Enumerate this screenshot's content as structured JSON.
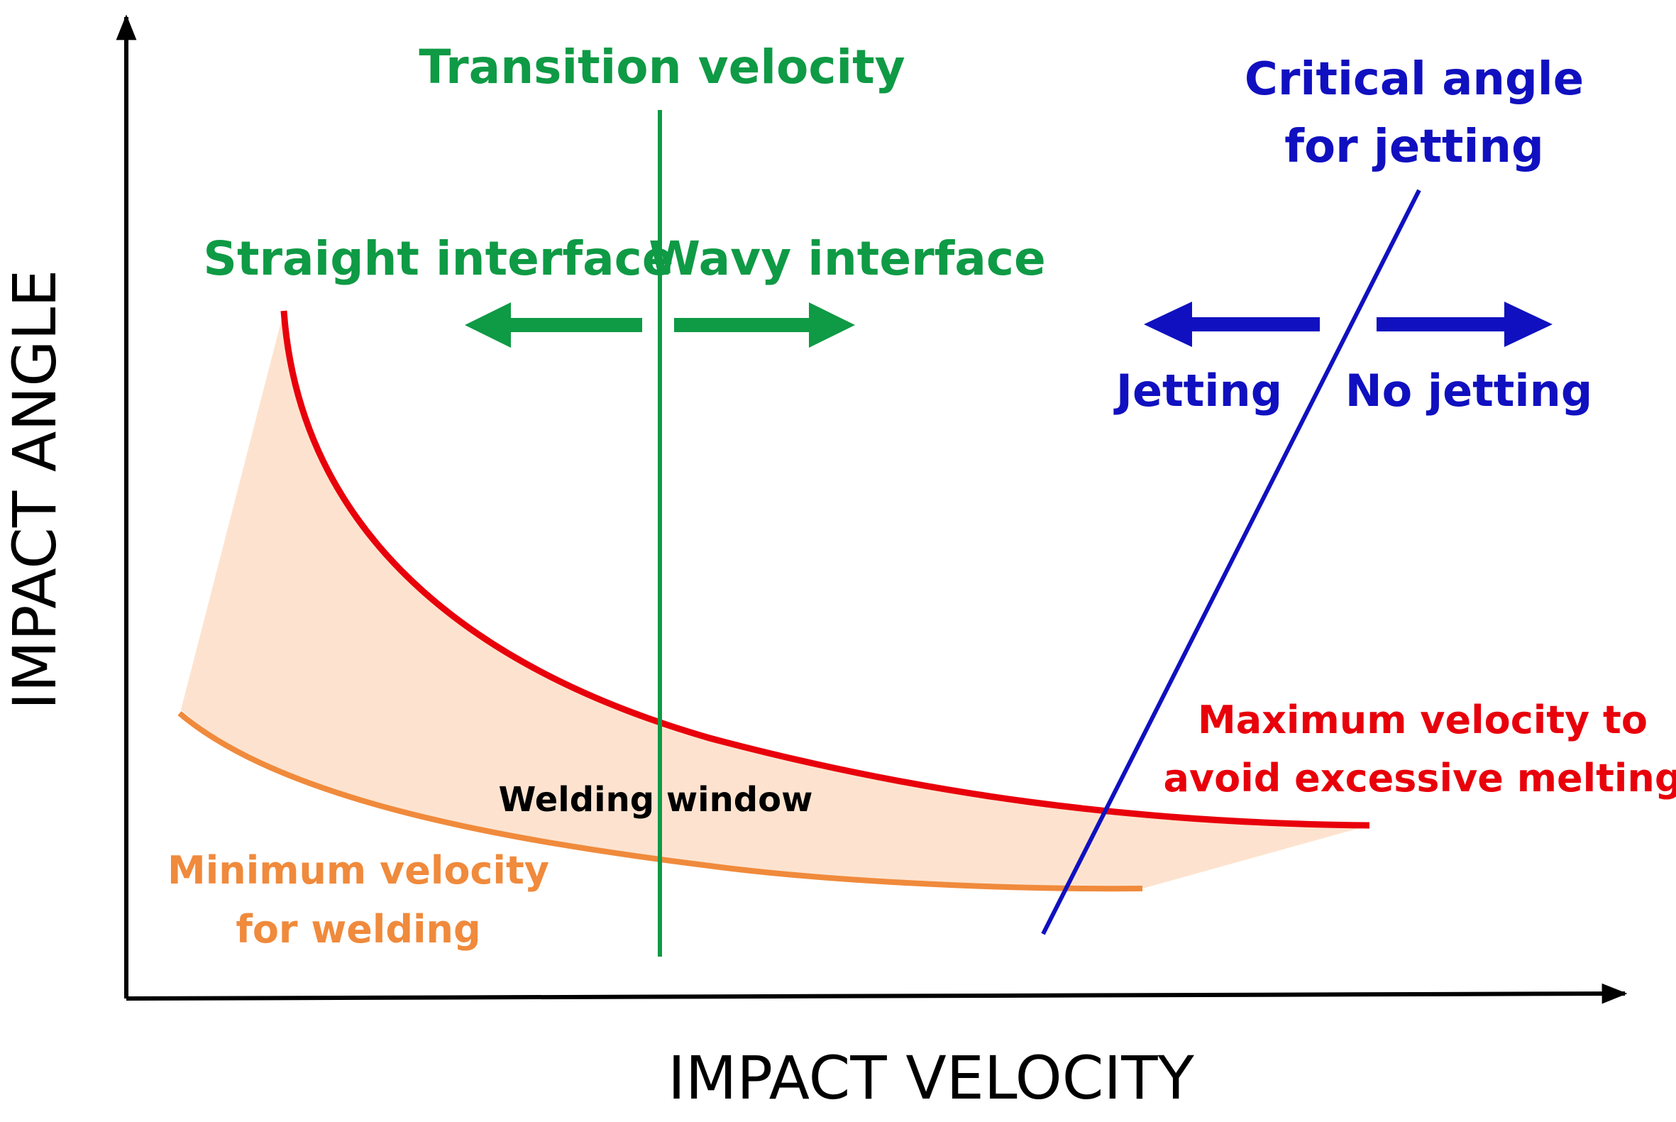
{
  "colors": {
    "axis": "#000000",
    "green": "#0f9a45",
    "blue": "#1010c0",
    "red": "#e8000b",
    "orange": "#f08a3c",
    "window_fill": "#fde3cf"
  },
  "axes": {
    "x_label": "IMPACT VELOCITY",
    "y_label": "IMPACT ANGLE"
  },
  "transition": {
    "title": "Transition velocity",
    "left_label": "Straight interface",
    "right_label": "Wavy interface"
  },
  "jetting": {
    "title_line1": "Critical angle",
    "title_line2": "for jetting",
    "left_label": "Jetting",
    "right_label": "No jetting"
  },
  "max_velocity": {
    "line1": "Maximum velocity to",
    "line2": "avoid excessive melting"
  },
  "min_velocity": {
    "line1": "Minimum velocity",
    "line2": "for welding"
  },
  "window": {
    "label": "Welding window"
  }
}
